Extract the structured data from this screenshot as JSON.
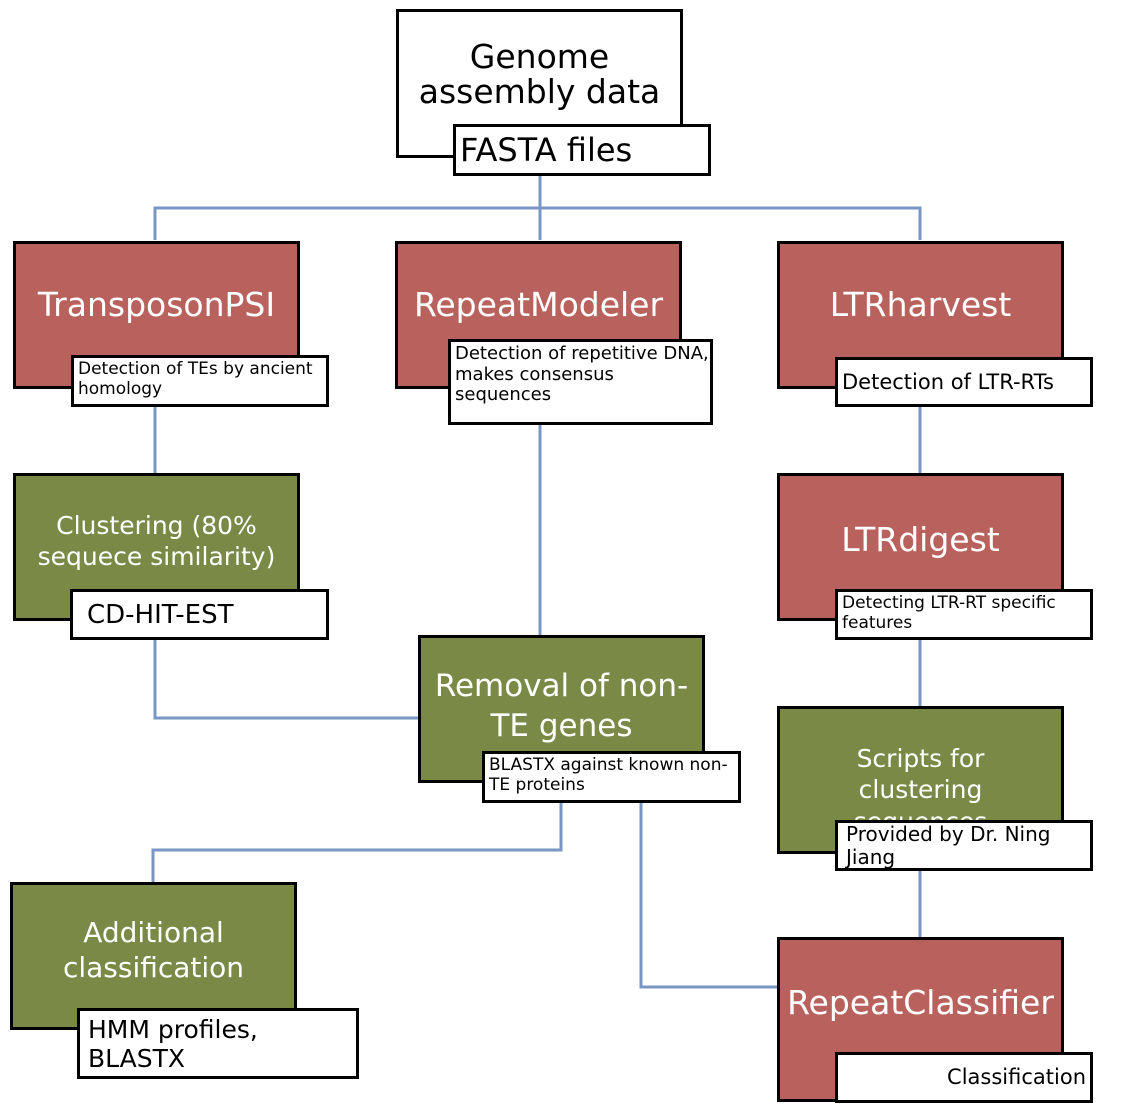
{
  "nodes": {
    "genome": {
      "title": "Genome assembly data",
      "subtitle": "FASTA files"
    },
    "transposonpsi": {
      "title": "TransposonPSI",
      "subtitle": "Detection of TEs by ancient homology"
    },
    "repeatmodeler": {
      "title": "RepeatModeler",
      "subtitle": "Detection of repetitive DNA, makes consensus sequences"
    },
    "ltrharvest": {
      "title": "LTRharvest",
      "subtitle": "Detection of LTR-RTs"
    },
    "clustering": {
      "title": "Clustering (80% sequece similarity)",
      "subtitle": "CD-HIT-EST"
    },
    "ltrdigest": {
      "title": "LTRdigest",
      "subtitle": "Detecting LTR-RT specific features"
    },
    "removal": {
      "title": "Removal of non-TE genes",
      "subtitle": "BLASTX against known non-TE proteins"
    },
    "scripts": {
      "title": "Scripts for clustering sequences",
      "subtitle": "Provided by Dr. Ning Jiang"
    },
    "additional": {
      "title": "Additional classification",
      "subtitle": "HMM profiles, BLASTX"
    },
    "repeatclassifier": {
      "title": "RepeatClassifier",
      "subtitle": "Classification"
    }
  },
  "colors": {
    "tool": "#b9625d",
    "process": "#7a8a46",
    "connector": "#7a96c6",
    "border": "#000000"
  }
}
